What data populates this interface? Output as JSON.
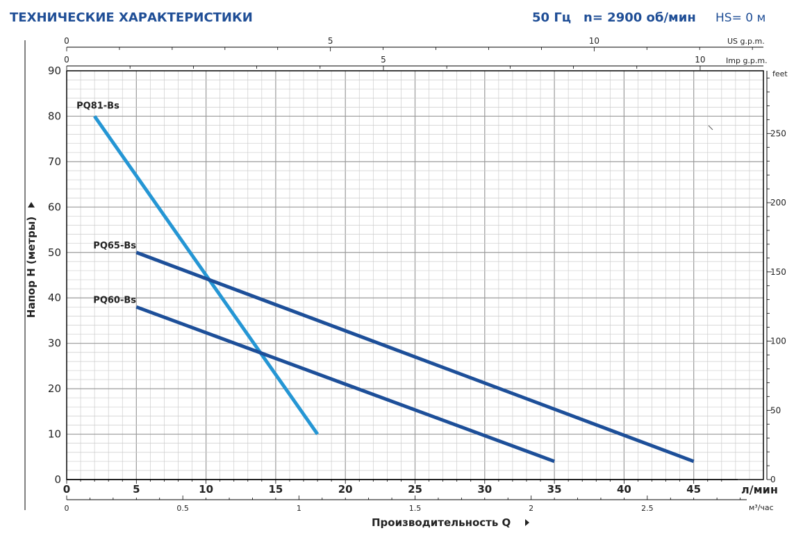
{
  "header": {
    "title": "ТЕХНИЧЕСКИЕ ХАРАКТЕРИСТИКИ",
    "freq": "50 Гц",
    "speed": "n= 2900 об/мин",
    "hs": "HS= 0 м"
  },
  "colors": {
    "header": "#1f4e96",
    "grid_minor": "#cccccc",
    "grid_major": "#9a9a9a",
    "axis": "#000000",
    "text": "#222222"
  },
  "chart_data": {
    "type": "line",
    "title": "",
    "xlabel": "л/мин",
    "ylabel": "Напор H (метры)",
    "bottom_label": "Производительность Q",
    "xlim": [
      0,
      50
    ],
    "ylim": [
      0,
      90
    ],
    "grid": true,
    "x_ticks": [
      "0",
      "5",
      "10",
      "15",
      "20",
      "25",
      "30",
      "35",
      "40",
      "45"
    ],
    "y_ticks": [
      "0",
      "10",
      "20",
      "30",
      "40",
      "50",
      "60",
      "70",
      "80",
      "90"
    ],
    "m3h_axis": {
      "unit": "м³/час",
      "ticks": [
        "0",
        "0.5",
        "1",
        "1.5",
        "2",
        "2.5"
      ]
    },
    "us_gpm_axis": {
      "unit": "US g.p.m.",
      "ticks": [
        "0",
        "5",
        "10"
      ]
    },
    "imp_gpm_axis": {
      "unit": "Imp g.p.m.",
      "ticks": [
        "0",
        "5",
        "10"
      ]
    },
    "feet_axis": {
      "unit": "feet",
      "ticks": [
        "0",
        "50",
        "100",
        "150",
        "200",
        "250"
      ]
    },
    "series": [
      {
        "name": "PQ81-Bs",
        "color": "#2596d4",
        "x": [
          2,
          18
        ],
        "y": [
          80,
          10
        ]
      },
      {
        "name": "PQ65-Bs",
        "color": "#1d4f99",
        "x": [
          5,
          45
        ],
        "y": [
          50,
          4
        ]
      },
      {
        "name": "PQ60-Bs",
        "color": "#1d4f99",
        "x": [
          5,
          35
        ],
        "y": [
          38,
          4
        ]
      }
    ]
  }
}
